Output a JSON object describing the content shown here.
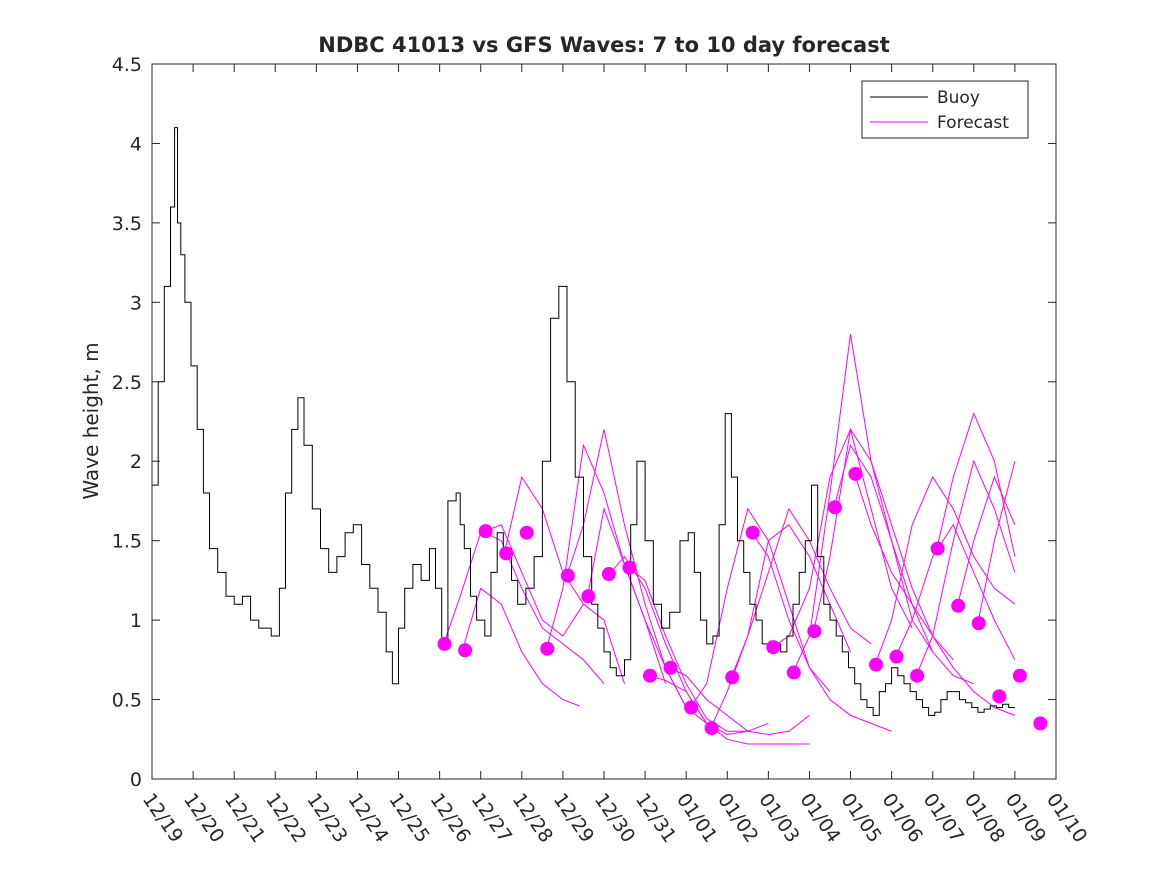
{
  "chart_data": {
    "type": "line",
    "title": "NDBC 41013 vs GFS Waves: 7 to 10 day forecast",
    "xlabel": "",
    "ylabel": "Wave height, m",
    "xlim": [
      0,
      22
    ],
    "ylim": [
      0,
      4.5
    ],
    "x_tick_values": [
      0,
      1,
      2,
      3,
      4,
      5,
      6,
      7,
      8,
      9,
      10,
      11,
      12,
      13,
      14,
      15,
      16,
      17,
      18,
      19,
      20,
      21,
      22
    ],
    "x_tick_labels": [
      "12/19",
      "12/20",
      "12/21",
      "12/22",
      "12/23",
      "12/24",
      "12/25",
      "12/26",
      "12/27",
      "12/28",
      "12/29",
      "12/30",
      "12/31",
      "01/01",
      "01/02",
      "01/03",
      "01/04",
      "01/05",
      "01/06",
      "01/07",
      "01/08",
      "01/09",
      "01/10"
    ],
    "y_tick_values": [
      0,
      0.5,
      1,
      1.5,
      2,
      2.5,
      3,
      3.5,
      4,
      4.5
    ],
    "y_tick_labels": [
      "0",
      "0.5",
      "1",
      "1.5",
      "2",
      "2.5",
      "3",
      "3.5",
      "4",
      "4.5"
    ],
    "grid": false,
    "legend": {
      "position": "top-right",
      "entries": [
        {
          "label": "Buoy",
          "color": "#000000"
        },
        {
          "label": "Forecast",
          "color": "#ff00ff"
        }
      ]
    },
    "series": [
      {
        "name": "Buoy",
        "color": "#000000",
        "x": [
          0,
          0.15,
          0.3,
          0.45,
          0.55,
          0.62,
          0.7,
          0.8,
          0.95,
          1.1,
          1.25,
          1.4,
          1.6,
          1.8,
          2.0,
          2.2,
          2.4,
          2.6,
          2.9,
          3.1,
          3.25,
          3.4,
          3.55,
          3.7,
          3.9,
          4.1,
          4.3,
          4.5,
          4.7,
          4.9,
          5.1,
          5.3,
          5.5,
          5.7,
          5.85,
          6.0,
          6.15,
          6.35,
          6.55,
          6.75,
          6.9,
          7.05,
          7.2,
          7.4,
          7.5,
          7.6,
          7.75,
          7.9,
          8.1,
          8.25,
          8.4,
          8.55,
          8.75,
          8.9,
          9.1,
          9.3,
          9.5,
          9.7,
          9.9,
          10.1,
          10.3,
          10.5,
          10.7,
          10.85,
          11.0,
          11.15,
          11.3,
          11.5,
          11.65,
          11.8,
          12.0,
          12.2,
          12.4,
          12.6,
          12.85,
          13.05,
          13.2,
          13.35,
          13.5,
          13.65,
          13.8,
          13.95,
          14.1,
          14.25,
          14.4,
          14.55,
          14.7,
          14.85,
          15.0,
          15.15,
          15.3,
          15.45,
          15.6,
          15.75,
          15.9,
          16.05,
          16.2,
          16.35,
          16.5,
          16.65,
          16.8,
          16.95,
          17.1,
          17.25,
          17.4,
          17.55,
          17.7,
          17.85,
          18.0,
          18.15,
          18.3,
          18.45,
          18.6,
          18.75,
          18.9,
          19.05,
          19.2,
          19.35,
          19.5,
          19.65,
          19.8,
          19.95,
          20.1,
          20.25,
          20.4,
          20.55,
          20.7,
          20.85,
          21.0
        ],
        "y": [
          1.85,
          2.5,
          3.1,
          3.6,
          4.1,
          3.5,
          3.3,
          3.0,
          2.6,
          2.2,
          1.8,
          1.45,
          1.3,
          1.15,
          1.1,
          1.15,
          1.0,
          0.95,
          0.9,
          1.2,
          1.8,
          2.2,
          2.4,
          2.1,
          1.7,
          1.45,
          1.3,
          1.4,
          1.55,
          1.6,
          1.35,
          1.2,
          1.05,
          0.8,
          0.6,
          0.95,
          1.2,
          1.35,
          1.25,
          1.45,
          1.2,
          0.85,
          1.75,
          1.8,
          1.6,
          1.45,
          1.15,
          1.0,
          0.9,
          1.3,
          1.55,
          1.45,
          1.25,
          1.1,
          1.2,
          1.4,
          2.0,
          2.9,
          3.1,
          2.5,
          1.9,
          1.4,
          1.1,
          0.95,
          0.8,
          0.7,
          0.65,
          0.75,
          1.6,
          2.0,
          1.5,
          1.1,
          0.95,
          1.05,
          1.5,
          1.55,
          1.3,
          1.0,
          0.85,
          0.9,
          1.6,
          2.3,
          1.9,
          1.5,
          1.3,
          1.1,
          1.0,
          0.85,
          0.8,
          0.85,
          0.8,
          0.9,
          1.1,
          1.3,
          1.5,
          1.85,
          1.4,
          1.1,
          1.0,
          0.9,
          0.8,
          0.7,
          0.6,
          0.5,
          0.45,
          0.4,
          0.55,
          0.6,
          0.7,
          0.65,
          0.6,
          0.55,
          0.5,
          0.45,
          0.4,
          0.42,
          0.5,
          0.55,
          0.55,
          0.5,
          0.48,
          0.45,
          0.42,
          0.44,
          0.46,
          0.45,
          0.47,
          0.45,
          0.45
        ]
      }
    ],
    "forecast_runs": [
      {
        "x": [
          7.1,
          7.5,
          8.0,
          8.5,
          9.0,
          9.5,
          10.0,
          10.5
        ],
        "y": [
          0.85,
          1.15,
          1.55,
          1.6,
          1.3,
          1.0,
          0.9,
          1.1
        ]
      },
      {
        "x": [
          7.6,
          8.0,
          8.5,
          9.0,
          9.5,
          10.0,
          10.4
        ],
        "y": [
          0.85,
          1.2,
          1.1,
          0.8,
          0.6,
          0.5,
          0.46
        ]
      },
      {
        "x": [
          8.1,
          8.5,
          9.0,
          9.5,
          10.0,
          10.5,
          11.0
        ],
        "y": [
          1.55,
          1.5,
          1.2,
          0.95,
          0.85,
          0.75,
          0.6
        ]
      },
      {
        "x": [
          8.6,
          9.0,
          9.5,
          10.0,
          10.5,
          11.0,
          11.5
        ],
        "y": [
          1.45,
          1.9,
          1.7,
          1.3,
          1.1,
          1.0,
          0.6
        ]
      },
      {
        "x": [
          9.6,
          10.0,
          10.5,
          11.0,
          11.5,
          12.0,
          12.5
        ],
        "y": [
          0.82,
          1.2,
          2.1,
          1.8,
          1.35,
          1.0,
          0.6
        ]
      },
      {
        "x": [
          10.1,
          10.5,
          11.0,
          11.5,
          12.0,
          12.5,
          13.0
        ],
        "y": [
          1.28,
          1.6,
          2.2,
          1.6,
          1.1,
          0.7,
          0.45
        ]
      },
      {
        "x": [
          10.6,
          11.0,
          11.5,
          12.0,
          12.5,
          13.0,
          13.5
        ],
        "y": [
          1.15,
          1.7,
          1.35,
          1.0,
          0.7,
          0.45,
          0.35
        ]
      },
      {
        "x": [
          11.1,
          11.5,
          12.0,
          12.5,
          13.0,
          13.5,
          14.0,
          14.5
        ],
        "y": [
          1.28,
          1.4,
          1.2,
          0.85,
          0.55,
          0.35,
          0.28,
          0.3
        ]
      },
      {
        "x": [
          11.6,
          12.0,
          12.5,
          13.0,
          13.5,
          14.0,
          14.5,
          15.0
        ],
        "y": [
          1.33,
          1.25,
          0.9,
          0.6,
          0.38,
          0.3,
          0.3,
          0.35
        ]
      },
      {
        "x": [
          12.1,
          12.5,
          13.0,
          13.5,
          14.0,
          14.5,
          15.0,
          15.5,
          16.0
        ],
        "y": [
          0.65,
          0.62,
          0.55,
          0.35,
          0.25,
          0.22,
          0.22,
          0.22,
          0.22
        ]
      },
      {
        "x": [
          12.6,
          13.0,
          13.5,
          14.0,
          14.5,
          15.0,
          15.5,
          16.0
        ],
        "y": [
          0.7,
          0.65,
          0.5,
          0.4,
          0.3,
          0.28,
          0.3,
          0.4
        ]
      },
      {
        "x": [
          13.1,
          13.5,
          14.0,
          14.5,
          15.0,
          15.5,
          16.0,
          16.5
        ],
        "y": [
          0.45,
          0.6,
          1.2,
          1.7,
          1.5,
          1.1,
          0.7,
          0.55
        ]
      },
      {
        "x": [
          13.6,
          14.0,
          14.5,
          15.0,
          15.5,
          16.0,
          16.5,
          17.0
        ],
        "y": [
          0.32,
          0.55,
          0.9,
          1.5,
          1.6,
          1.4,
          1.1,
          0.8
        ]
      },
      {
        "x": [
          14.1,
          14.5,
          15.0,
          15.5,
          16.0,
          16.5,
          17.0,
          17.5
        ],
        "y": [
          0.64,
          0.9,
          1.3,
          1.7,
          1.5,
          1.2,
          0.95,
          0.85
        ]
      },
      {
        "x": [
          14.6,
          15.0,
          15.5,
          16.0,
          16.5,
          17.0,
          17.5,
          18.0
        ],
        "y": [
          1.55,
          1.4,
          1.0,
          0.7,
          0.5,
          0.4,
          0.35,
          0.3
        ]
      },
      {
        "x": [
          15.1,
          15.5,
          16.0,
          16.5,
          17.0,
          17.5,
          18.0,
          18.5
        ],
        "y": [
          0.83,
          0.9,
          1.2,
          1.9,
          2.2,
          1.7,
          1.2,
          0.95
        ]
      },
      {
        "x": [
          15.6,
          16.0,
          16.5,
          17.0,
          17.5,
          18.0,
          18.5,
          19.0
        ],
        "y": [
          0.67,
          0.9,
          1.8,
          2.8,
          2.0,
          1.5,
          1.0,
          0.8
        ]
      },
      {
        "x": [
          16.1,
          16.5,
          17.0,
          17.5,
          18.0,
          18.5,
          19.0,
          19.5
        ],
        "y": [
          0.93,
          1.4,
          2.2,
          2.0,
          1.6,
          1.2,
          0.9,
          0.75
        ]
      },
      {
        "x": [
          16.6,
          17.0,
          17.5,
          18.0,
          18.5,
          19.0,
          19.5,
          20.0
        ],
        "y": [
          1.71,
          2.1,
          1.9,
          1.5,
          1.1,
          0.8,
          0.65,
          0.6
        ]
      },
      {
        "x": [
          17.1,
          17.5,
          18.0,
          18.5,
          19.0,
          19.5,
          20.0,
          20.5,
          21.0
        ],
        "y": [
          1.92,
          1.6,
          1.3,
          1.1,
          0.9,
          0.7,
          0.55,
          0.45,
          0.4
        ]
      },
      {
        "x": [
          17.6,
          18.0,
          18.5,
          19.0,
          19.5,
          20.0,
          20.5,
          21.0
        ],
        "y": [
          0.72,
          1.0,
          1.6,
          1.9,
          1.7,
          1.4,
          1.2,
          1.1
        ]
      },
      {
        "x": [
          18.1,
          18.5,
          19.0,
          19.5,
          20.0,
          20.5,
          21.0
        ],
        "y": [
          0.77,
          1.0,
          1.4,
          1.6,
          1.3,
          1.0,
          0.75
        ]
      },
      {
        "x": [
          18.6,
          19.0,
          19.5,
          20.0,
          20.5,
          21.0
        ],
        "y": [
          0.65,
          0.9,
          1.5,
          2.0,
          1.7,
          1.3
        ]
      },
      {
        "x": [
          19.1,
          19.5,
          20.0,
          20.5,
          21.0
        ],
        "y": [
          1.45,
          1.9,
          2.3,
          2.0,
          1.4
        ]
      },
      {
        "x": [
          19.6,
          20.0,
          20.5,
          21.0
        ],
        "y": [
          1.09,
          1.5,
          1.9,
          1.6
        ]
      },
      {
        "x": [
          20.1,
          20.5,
          21.0
        ],
        "y": [
          0.98,
          1.5,
          2.0
        ]
      }
    ],
    "forecast_markers": {
      "name": "Forecast",
      "color": "#ff00ff",
      "x": [
        7.12,
        7.62,
        8.12,
        8.62,
        9.12,
        9.62,
        10.12,
        10.62,
        11.12,
        11.62,
        12.12,
        12.62,
        13.12,
        13.62,
        14.12,
        14.62,
        15.12,
        15.62,
        16.12,
        16.62,
        17.12,
        17.62,
        18.12,
        18.62,
        19.12,
        19.62,
        20.12,
        20.62,
        21.12,
        21.62
      ],
      "y": [
        0.85,
        0.81,
        1.56,
        1.42,
        1.55,
        0.82,
        1.28,
        1.15,
        1.29,
        1.33,
        0.65,
        0.7,
        0.45,
        0.32,
        0.64,
        1.55,
        0.83,
        0.67,
        0.93,
        1.71,
        1.92,
        0.72,
        0.77,
        0.65,
        1.45,
        1.09,
        0.98,
        0.52,
        0.65,
        0.35
      ]
    }
  }
}
